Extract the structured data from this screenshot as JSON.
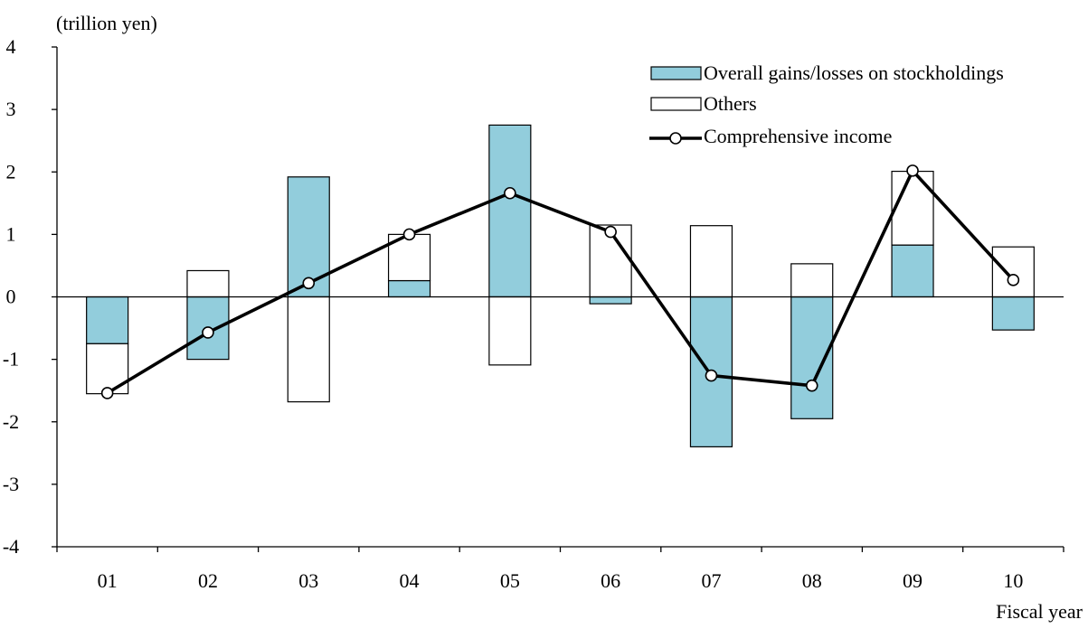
{
  "chart_data": {
    "type": "bar",
    "unit_label": "(trillion yen)",
    "xlabel": "Fiscal year",
    "ylabel": "",
    "categories": [
      "01",
      "02",
      "03",
      "04",
      "05",
      "06",
      "07",
      "08",
      "09",
      "10"
    ],
    "ylim": [
      -4,
      4
    ],
    "yticks": [
      "4",
      "3",
      "2",
      "1",
      "0",
      "-1",
      "-2",
      "-3",
      "-4"
    ],
    "ytick_values": [
      4,
      3,
      2,
      1,
      0,
      -1,
      -2,
      -3,
      -4
    ],
    "legend_position": "top-right",
    "grid": false,
    "stacked": true,
    "series": [
      {
        "name": "Overall gains/losses on stockholdings",
        "kind": "bar",
        "color": "#92cddc",
        "values": [
          -0.75,
          -1.0,
          1.92,
          0.26,
          2.75,
          -0.11,
          -2.4,
          -1.95,
          0.83,
          -0.53
        ]
      },
      {
        "name": "Others",
        "kind": "bar",
        "color": "#ffffff",
        "values": [
          -0.8,
          0.42,
          -1.68,
          0.74,
          -1.09,
          1.15,
          1.14,
          0.53,
          1.18,
          0.8
        ]
      },
      {
        "name": "Comprehensive income",
        "kind": "line",
        "color": "#000000",
        "values": [
          -1.54,
          -0.57,
          0.22,
          1.0,
          1.66,
          1.04,
          -1.26,
          -1.42,
          2.02,
          0.27
        ]
      }
    ]
  }
}
